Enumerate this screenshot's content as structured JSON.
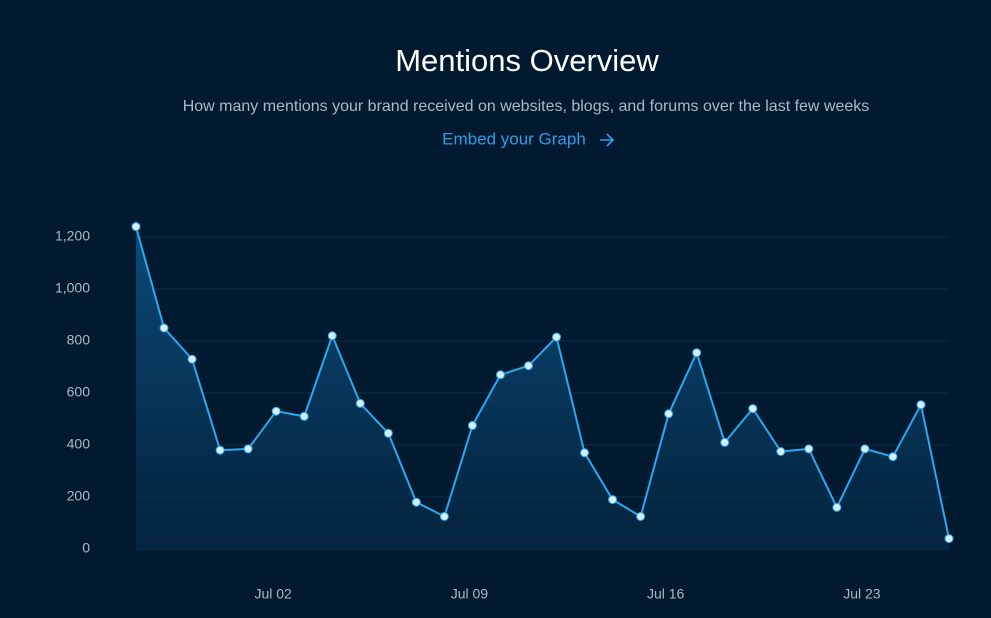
{
  "header": {
    "title": "Mentions Overview",
    "subtitle": "How many mentions your brand received on websites, blogs, and forums over the last few weeks",
    "link": "Embed your Graph"
  },
  "chart_data": {
    "type": "area",
    "categories": [
      null,
      null,
      null,
      null,
      null,
      "Jul 02",
      null,
      null,
      null,
      null,
      null,
      null,
      "Jul 09",
      null,
      null,
      null,
      null,
      null,
      null,
      "Jul 16",
      null,
      null,
      null,
      null,
      null,
      null,
      "Jul 23",
      null,
      null,
      null
    ],
    "values": [
      1240,
      850,
      730,
      380,
      385,
      530,
      510,
      820,
      560,
      445,
      180,
      125,
      475,
      670,
      705,
      815,
      370,
      190,
      125,
      520,
      755,
      410,
      540,
      375,
      385,
      160,
      385,
      355,
      555,
      40
    ],
    "color": "#2aa8f0",
    "ylim": [
      0,
      1200
    ],
    "yticks": [
      0,
      200,
      400,
      600,
      800,
      {
        "value": 1000,
        "label": "1,000"
      },
      {
        "value": 1200,
        "label": "1,200"
      }
    ],
    "grid": true
  }
}
